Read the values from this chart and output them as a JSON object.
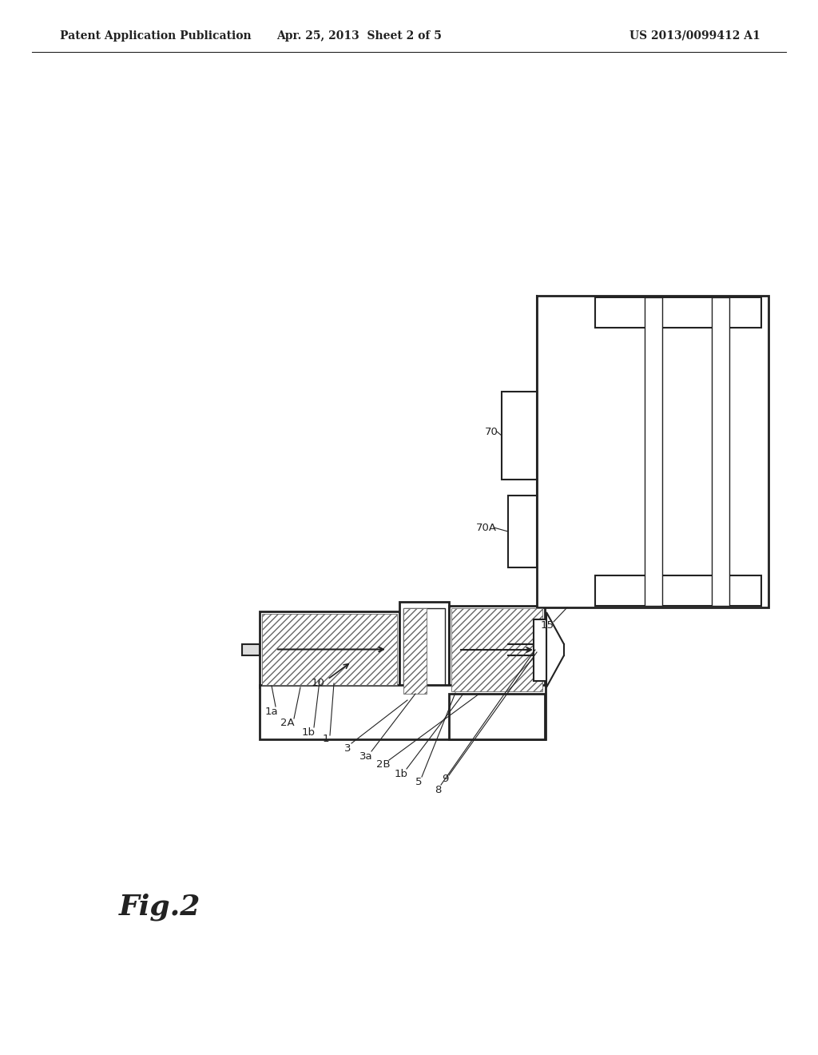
{
  "bg_color": "#ffffff",
  "line_color": "#222222",
  "header_left": "Patent Application Publication",
  "header_mid": "Apr. 25, 2013  Sheet 2 of 5",
  "header_right": "US 2013/0099412 A1",
  "fig_label": "Fig.2"
}
